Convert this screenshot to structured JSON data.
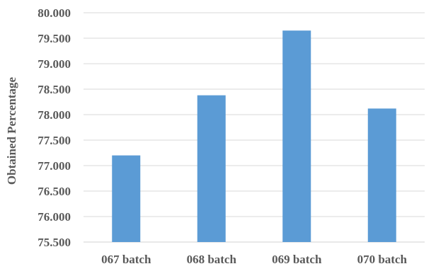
{
  "chart_data": {
    "type": "bar",
    "title": "",
    "xlabel": "",
    "ylabel": "Obtained Percentage",
    "categories": [
      "067 batch",
      "068 batch",
      "069 batch",
      "070 batch"
    ],
    "values": [
      77.2,
      78.38,
      79.65,
      78.12
    ],
    "ylim": [
      75.5,
      80.0
    ],
    "yticks": [
      "75.500",
      "76.000",
      "76.500",
      "77.000",
      "77.500",
      "78.000",
      "78.500",
      "79.000",
      "79.500",
      "80.000"
    ],
    "grid": true,
    "legend": "none",
    "colors": {
      "bar": "#5B9BD5",
      "grid": "#D9D9D9",
      "text": "#595959"
    }
  }
}
